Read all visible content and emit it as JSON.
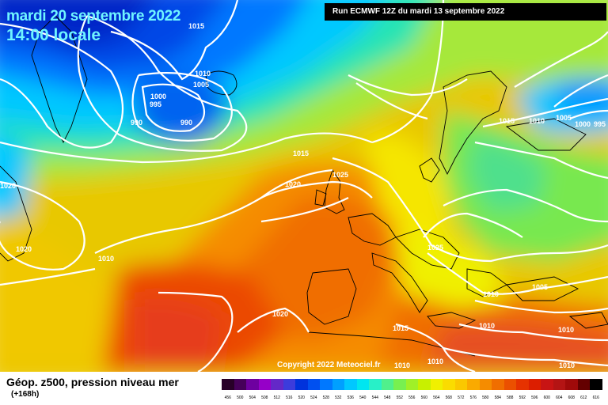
{
  "header": {
    "date": "mardi 20 septembre 2022",
    "local_time": "14:00 locale",
    "run": "Run ECMWF 12Z du mardi 13 septembre 2022"
  },
  "footer": {
    "caption": "Géop. z500, pression niveau mer",
    "lead_time": "(+168h)",
    "copyright": "Copyright 2022 Meteociel.fr"
  },
  "scale": {
    "labels": [
      "456",
      "500",
      "504",
      "508",
      "512",
      "516",
      "520",
      "524",
      "528",
      "532",
      "536",
      "540",
      "544",
      "548",
      "552",
      "556",
      "560",
      "564",
      "568",
      "572",
      "576",
      "580",
      "584",
      "588",
      "592",
      "596",
      "600",
      "604",
      "608",
      "612",
      "616"
    ],
    "colors": [
      "#280028",
      "#46005a",
      "#6e00a0",
      "#9600c8",
      "#6428c8",
      "#3c3cdc",
      "#0032dc",
      "#0050f0",
      "#0078ff",
      "#00a0ff",
      "#00c8ff",
      "#00e6f0",
      "#28f0c8",
      "#50f08c",
      "#78f050",
      "#a0f028",
      "#c8f000",
      "#f0f000",
      "#fadc00",
      "#fac800",
      "#faaa00",
      "#f58c00",
      "#f06e00",
      "#eb5000",
      "#e63200",
      "#dc1e00",
      "#c81414",
      "#b41414",
      "#a00a0a",
      "#640000",
      "#000000"
    ]
  },
  "isobar_labels": [
    {
      "text": "1015"
    },
    {
      "text": "1010"
    },
    {
      "text": "1005"
    },
    {
      "text": "1000"
    },
    {
      "text": "995"
    },
    {
      "text": "990"
    },
    {
      "text": "990"
    },
    {
      "text": "1015"
    },
    {
      "text": "1020"
    },
    {
      "text": "1025"
    },
    {
      "text": "1020"
    },
    {
      "text": "1020"
    },
    {
      "text": "1010"
    },
    {
      "text": "1020"
    },
    {
      "text": "1025"
    },
    {
      "text": "1015"
    },
    {
      "text": "1010"
    },
    {
      "text": "1005"
    },
    {
      "text": "1000"
    },
    {
      "text": "995"
    },
    {
      "text": "1010"
    },
    {
      "text": "1010"
    },
    {
      "text": "1015"
    },
    {
      "text": "1010"
    },
    {
      "text": "1010"
    },
    {
      "text": "1010"
    },
    {
      "text": "1010"
    },
    {
      "text": "1005"
    }
  ]
}
